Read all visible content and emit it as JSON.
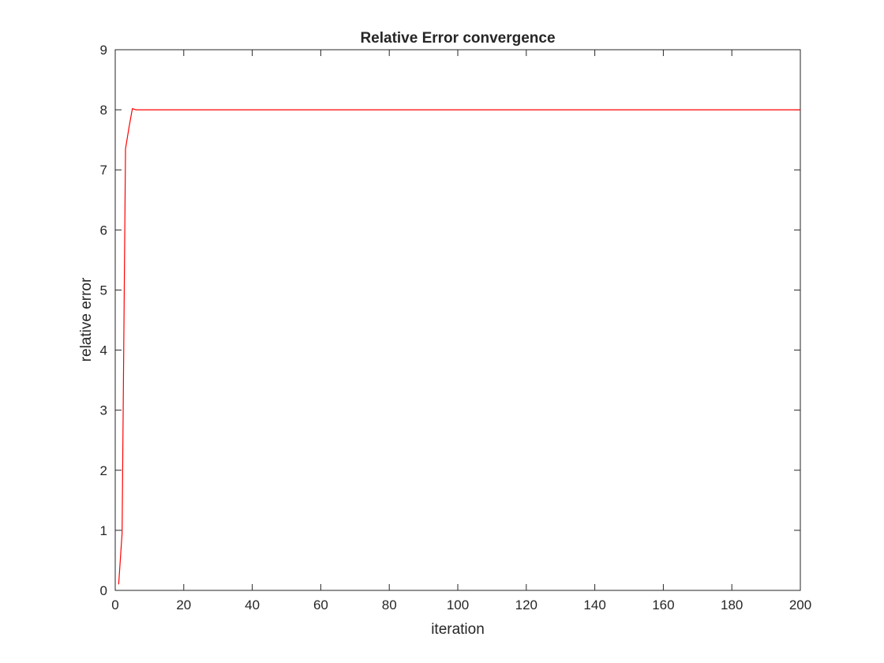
{
  "chart_data": {
    "type": "line",
    "title": "Relative Error convergence",
    "xlabel": "iteration",
    "ylabel": "relative error",
    "xlim": [
      0,
      200
    ],
    "ylim": [
      0,
      9
    ],
    "xticks": [
      0,
      20,
      40,
      60,
      80,
      100,
      120,
      140,
      160,
      180,
      200
    ],
    "yticks": [
      0,
      1,
      2,
      3,
      4,
      5,
      6,
      7,
      8,
      9
    ],
    "grid": false,
    "legend": "none",
    "series": [
      {
        "color": "#ff0000",
        "x": [
          1,
          2,
          3,
          4,
          5,
          6,
          7,
          8,
          10,
          20,
          50,
          100,
          150,
          200
        ],
        "y": [
          0.1,
          0.95,
          7.35,
          7.7,
          8.02,
          8.0,
          8.0,
          8.0,
          8.0,
          8.0,
          8.0,
          8.0,
          8.0,
          8.0
        ]
      }
    ]
  }
}
